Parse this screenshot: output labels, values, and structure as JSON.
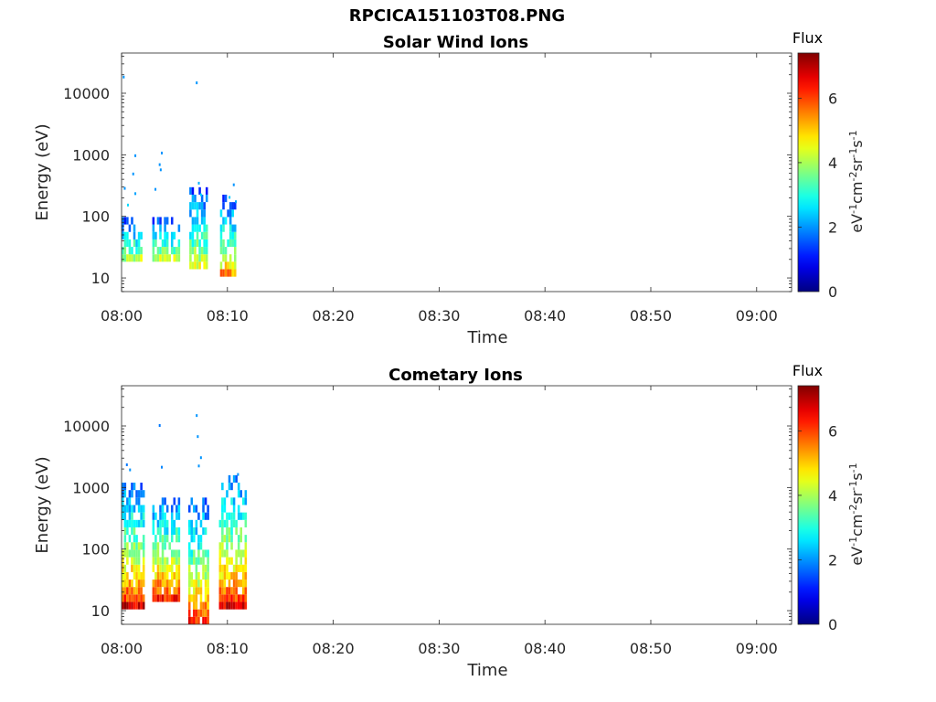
{
  "figure": {
    "title": "RPCICA151103T08.PNG"
  },
  "chart_data": [
    {
      "type": "heatmap",
      "title": "Solar Wind Ions",
      "xlabel": "Time",
      "ylabel": "Energy (eV)",
      "x_tick_labels": [
        "08:00",
        "08:10",
        "08:20",
        "08:30",
        "08:40",
        "08:50",
        "09:00"
      ],
      "x_range_minutes": [
        0,
        63.3
      ],
      "y_scale": "log",
      "y_tick_labels": [
        "10",
        "100",
        "1000",
        "10000"
      ],
      "ylim": [
        6,
        45000
      ],
      "colorbar": {
        "title": "Flux",
        "label": "eV-1cm-2sr-1s-1",
        "ticks": [
          "0",
          "2",
          "4",
          "6"
        ],
        "range": [
          0,
          7.4
        ],
        "colormap": "jet"
      },
      "bursts": [
        {
          "t_start": 0.0,
          "t_end": 1.9,
          "e_min": 16,
          "e_max": 110,
          "peak": 5.0,
          "sparse": [
            [
              0.2,
              18000,
              2.0
            ],
            [
              0.3,
              280,
              2.0
            ],
            [
              1.3,
              950,
              2.0
            ],
            [
              1.1,
              480,
              2.0
            ],
            [
              1.3,
              230,
              2.1
            ],
            [
              0.6,
              150,
              2.5
            ]
          ]
        },
        {
          "t_start": 2.9,
          "t_end": 5.4,
          "e_min": 16,
          "e_max": 90,
          "peak": 5.2,
          "sparse": [
            [
              3.8,
              1050,
              2.0
            ],
            [
              3.6,
              680,
              2.0
            ],
            [
              3.7,
              560,
              2.0
            ],
            [
              3.2,
              270,
              2.0
            ]
          ]
        },
        {
          "t_start": 6.4,
          "t_end": 8.0,
          "e_min": 14,
          "e_max": 340,
          "peak": 5.0,
          "sparse": [
            [
              7.1,
              14500,
              2.0
            ],
            [
              7.3,
              340,
              2.2
            ],
            [
              7.5,
              220,
              2.5
            ]
          ]
        },
        {
          "t_start": 9.3,
          "t_end": 10.8,
          "e_min": 12,
          "e_max": 230,
          "peak": 5.4,
          "sparse": [
            [
              10.6,
              320,
              2.0
            ],
            [
              10.8,
              170,
              2.1
            ],
            [
              10.2,
              200,
              2.4
            ]
          ]
        }
      ]
    },
    {
      "type": "heatmap",
      "title": "Cometary Ions",
      "xlabel": "Time",
      "ylabel": "Energy (eV)",
      "x_tick_labels": [
        "08:00",
        "08:10",
        "08:20",
        "08:30",
        "08:40",
        "08:50",
        "09:00"
      ],
      "x_range_minutes": [
        0,
        63.3
      ],
      "y_scale": "log",
      "y_tick_labels": [
        "10",
        "100",
        "1000",
        "10000"
      ],
      "ylim": [
        6,
        45000
      ],
      "colorbar": {
        "title": "Flux",
        "label": "eV-1cm-2sr-1s-1",
        "ticks": [
          "0",
          "2",
          "4",
          "6"
        ],
        "range": [
          0,
          7.4
        ],
        "colormap": "jet"
      },
      "bursts": [
        {
          "t_start": 0.0,
          "t_end": 2.2,
          "e_min": 12,
          "e_max": 1200,
          "peak": 6.8,
          "sparse": [
            [
              0.5,
              2300,
              1.8
            ],
            [
              0.8,
              1900,
              2.0
            ]
          ]
        },
        {
          "t_start": 2.9,
          "t_end": 5.4,
          "e_min": 14,
          "e_max": 700,
          "peak": 6.8,
          "sparse": [
            [
              3.6,
              10000,
              1.8
            ],
            [
              3.8,
              2100,
              1.9
            ]
          ]
        },
        {
          "t_start": 6.3,
          "t_end": 8.1,
          "e_min": 6,
          "e_max": 600,
          "peak": 6.6,
          "sparse": [
            [
              7.1,
              14500,
              2.0
            ],
            [
              7.2,
              6600,
              2.0
            ],
            [
              7.5,
              3000,
              2.0
            ],
            [
              7.3,
              2200,
              2.0
            ]
          ]
        },
        {
          "t_start": 9.2,
          "t_end": 11.7,
          "e_min": 12,
          "e_max": 1600,
          "peak": 6.8,
          "sparse": [
            [
              11.0,
              1600,
              2.0
            ]
          ]
        }
      ]
    }
  ]
}
